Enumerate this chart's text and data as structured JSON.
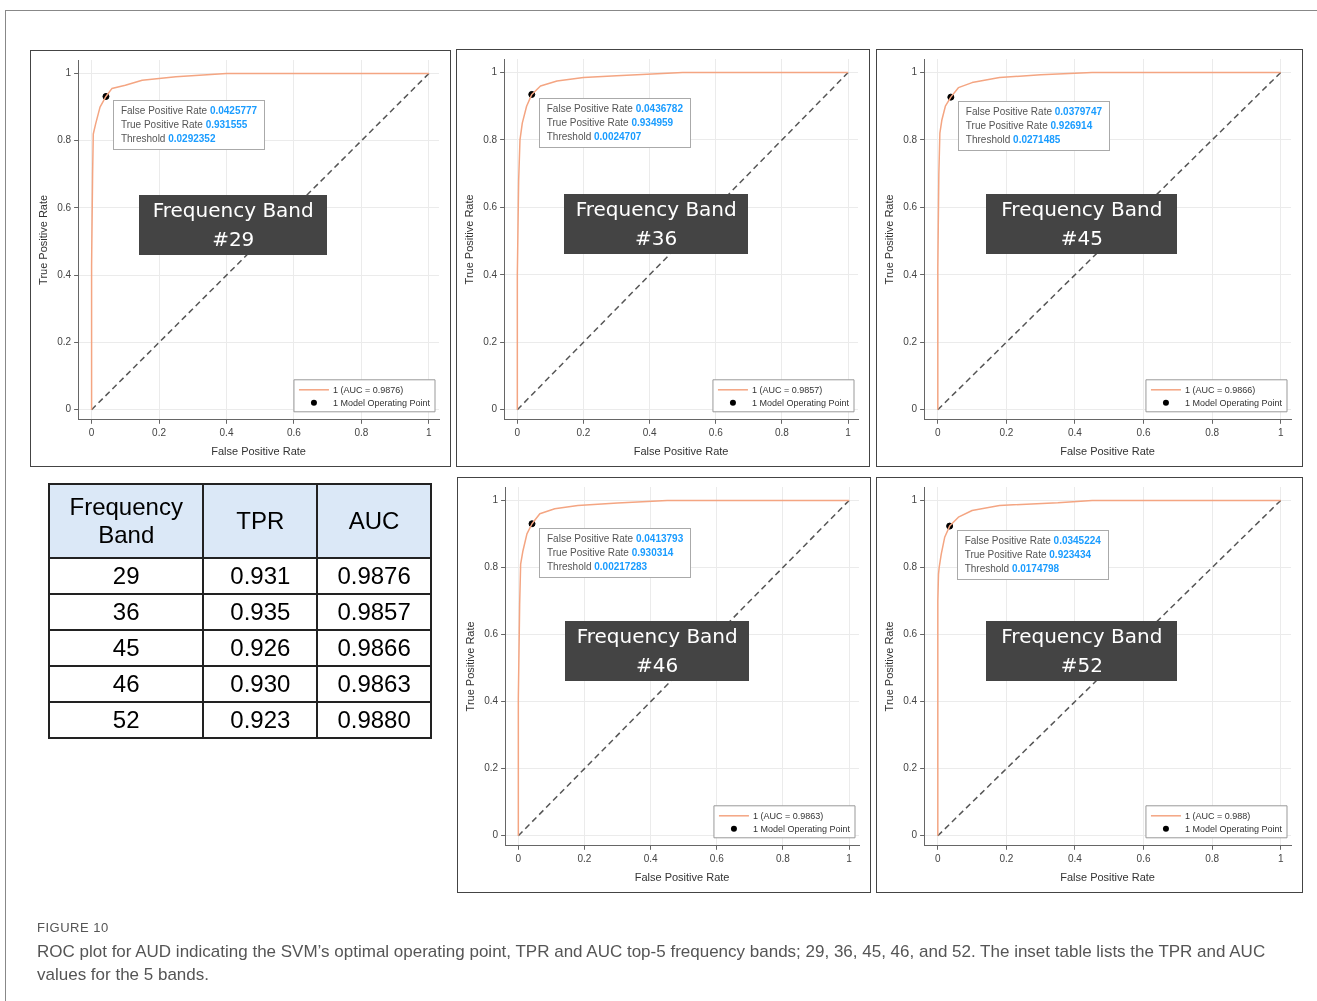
{
  "chart_data": [
    {
      "type": "line",
      "title": "Frequency Band #29",
      "xlabel": "False Positive Rate",
      "ylabel": "True Positive Rate",
      "xlim": [
        -0.04,
        1.03
      ],
      "ylim": [
        -0.03,
        1.04
      ],
      "xticks": [
        0,
        0.2,
        0.4,
        0.6,
        0.8,
        1
      ],
      "yticks": [
        0,
        0.2,
        0.4,
        0.6,
        0.8,
        1
      ],
      "grid": true,
      "legend": "bottom right",
      "annotations": [
        {
          "text": "False Positive Rate 0.0425777",
          "x": 0.0425777,
          "y": 0.931555
        },
        {
          "text": "True Positive Rate 0.931555",
          "x": 0.0425777,
          "y": 0.931555
        },
        "Threshold 0.0292352"
      ],
      "series": [
        {
          "name": "1 (AUC = 0.9876)",
          "type": "line",
          "color": "#f4a582",
          "marker": "none",
          "x": [
            0,
            0,
            0.003,
            0.005,
            0.012,
            0.025,
            0.0425777,
            0.06,
            0.1,
            0.15,
            0.25,
            0.4,
            1
          ],
          "values": [
            0,
            0.43,
            0.7,
            0.82,
            0.85,
            0.9,
            0.931555,
            0.955,
            0.965,
            0.98,
            0.99,
            1,
            1
          ]
        },
        {
          "type": "line",
          "color": "#555555",
          "marker": "none",
          "line_style": "dashed",
          "x": [
            0,
            1
          ],
          "values": [
            0,
            1
          ]
        },
        {
          "name": "1 Model Operating Point",
          "type": "scatter",
          "color": "#000000",
          "marker": "circle",
          "x": [
            0.0425777
          ],
          "values": [
            0.931555
          ]
        }
      ]
    },
    {
      "type": "line",
      "title": "Frequency Band #36",
      "xlabel": "False Positive Rate",
      "ylabel": "True Positive Rate",
      "xlim": [
        -0.04,
        1.03
      ],
      "ylim": [
        -0.03,
        1.04
      ],
      "xticks": [
        0,
        0.2,
        0.4,
        0.6,
        0.8,
        1
      ],
      "yticks": [
        0,
        0.2,
        0.4,
        0.6,
        0.8,
        1
      ],
      "grid": true,
      "legend": "bottom right",
      "annotations": [
        {
          "text": "False Positive Rate 0.0436782",
          "x": 0.0436782,
          "y": 0.934959
        },
        {
          "text": "True Positive Rate 0.934959",
          "x": 0.0436782,
          "y": 0.934959
        },
        "Threshold 0.0024707"
      ],
      "series": [
        {
          "name": "1 (AUC = 0.9857)",
          "type": "line",
          "color": "#f4a582",
          "marker": "none",
          "x": [
            0,
            0,
            0.004,
            0.008,
            0.015,
            0.028,
            0.0436782,
            0.07,
            0.12,
            0.2,
            0.3,
            0.5,
            1
          ],
          "values": [
            0,
            0.4,
            0.68,
            0.8,
            0.85,
            0.9,
            0.934959,
            0.96,
            0.975,
            0.985,
            0.99,
            1,
            1
          ]
        },
        {
          "type": "line",
          "color": "#555555",
          "marker": "none",
          "line_style": "dashed",
          "x": [
            0,
            1
          ],
          "values": [
            0,
            1
          ]
        },
        {
          "name": "1 Model Operating Point",
          "type": "scatter",
          "color": "#000000",
          "marker": "circle",
          "x": [
            0.0436782
          ],
          "values": [
            0.934959
          ]
        }
      ]
    },
    {
      "type": "line",
      "title": "Frequency Band #45",
      "xlabel": "False Positive Rate",
      "ylabel": "True Positive Rate",
      "xlim": [
        -0.04,
        1.03
      ],
      "ylim": [
        -0.03,
        1.04
      ],
      "xticks": [
        0,
        0.2,
        0.4,
        0.6,
        0.8,
        1
      ],
      "yticks": [
        0,
        0.2,
        0.4,
        0.6,
        0.8,
        1
      ],
      "grid": true,
      "legend": "bottom right",
      "annotations": [
        {
          "text": "False Positive Rate 0.0379747",
          "x": 0.0379747,
          "y": 0.926914
        },
        {
          "text": "True Positive Rate 0.926914",
          "x": 0.0379747,
          "y": 0.926914
        },
        "Threshold 0.0271485"
      ],
      "series": [
        {
          "name": "1 (AUC = 0.9866)",
          "type": "line",
          "color": "#f4a582",
          "marker": "none",
          "x": [
            0,
            0,
            0.003,
            0.006,
            0.012,
            0.022,
            0.0379747,
            0.06,
            0.1,
            0.18,
            0.3,
            0.45,
            1
          ],
          "values": [
            0,
            0.42,
            0.7,
            0.82,
            0.86,
            0.9,
            0.926914,
            0.955,
            0.97,
            0.985,
            0.993,
            1,
            1
          ]
        },
        {
          "type": "line",
          "color": "#555555",
          "marker": "none",
          "line_style": "dashed",
          "x": [
            0,
            1
          ],
          "values": [
            0,
            1
          ]
        },
        {
          "name": "1 Model Operating Point",
          "type": "scatter",
          "color": "#000000",
          "marker": "circle",
          "x": [
            0.0379747
          ],
          "values": [
            0.926914
          ]
        }
      ]
    },
    {
      "type": "other",
      "categories": [
        "Frequency Band",
        "TPR",
        "AUC"
      ],
      "y_categories": [
        "29",
        "36",
        "45",
        "46",
        "52"
      ],
      "cells": [
        [
          "0.931",
          "0.9876"
        ],
        [
          "0.935",
          "0.9857"
        ],
        [
          "0.926",
          "0.9866"
        ],
        [
          "0.930",
          "0.9863"
        ],
        [
          "0.923",
          "0.9880"
        ]
      ],
      "annotations": [
        "FIGURE 10",
        "ROC plot for AUD indicating the SVM’s optimal operating point, TPR and AUC top-5 frequency bands; 29, 36, 45, 46, and 52. The inset table lists the TPR and AUC values for the 5 bands."
      ]
    },
    {
      "type": "line",
      "title": "Frequency Band #46",
      "xlabel": "False Positive Rate",
      "ylabel": "True Positive Rate",
      "xlim": [
        -0.04,
        1.03
      ],
      "ylim": [
        -0.03,
        1.04
      ],
      "xticks": [
        0,
        0.2,
        0.4,
        0.6,
        0.8,
        1
      ],
      "yticks": [
        0,
        0.2,
        0.4,
        0.6,
        0.8,
        1
      ],
      "grid": true,
      "legend": "bottom right",
      "annotations": [
        {
          "text": "False Positive Rate 0.0413793",
          "x": 0.0413793,
          "y": 0.930314
        },
        {
          "text": "True Positive Rate 0.930314",
          "x": 0.0413793,
          "y": 0.930314
        },
        "Threshold 0.00217283"
      ],
      "series": [
        {
          "name": "1 (AUC = 0.9863)",
          "type": "line",
          "color": "#f4a582",
          "marker": "none",
          "x": [
            0,
            0,
            0.004,
            0.007,
            0.014,
            0.026,
            0.0413793,
            0.065,
            0.11,
            0.18,
            0.3,
            0.45,
            1
          ],
          "values": [
            0,
            0.41,
            0.69,
            0.81,
            0.85,
            0.9,
            0.930314,
            0.96,
            0.975,
            0.985,
            0.992,
            1,
            1
          ]
        },
        {
          "type": "line",
          "color": "#555555",
          "marker": "none",
          "line_style": "dashed",
          "x": [
            0,
            1
          ],
          "values": [
            0,
            1
          ]
        },
        {
          "name": "1 Model Operating Point",
          "type": "scatter",
          "color": "#000000",
          "marker": "circle",
          "x": [
            0.0413793
          ],
          "values": [
            0.930314
          ]
        }
      ]
    },
    {
      "type": "line",
      "title": "Frequency Band #52",
      "xlabel": "False Positive Rate",
      "ylabel": "True Positive Rate",
      "xlim": [
        -0.04,
        1.03
      ],
      "ylim": [
        -0.03,
        1.04
      ],
      "xticks": [
        0,
        0.2,
        0.4,
        0.6,
        0.8,
        1
      ],
      "yticks": [
        0,
        0.2,
        0.4,
        0.6,
        0.8,
        1
      ],
      "grid": true,
      "legend": "bottom right",
      "annotations": [
        {
          "text": "False Positive Rate 0.0345224",
          "x": 0.0345224,
          "y": 0.923434
        },
        {
          "text": "True Positive Rate 0.923434",
          "x": 0.0345224,
          "y": 0.923434
        },
        "Threshold 0.0174798"
      ],
      "series": [
        {
          "name": "1 (AUC = 0.988)",
          "type": "line",
          "color": "#f4a582",
          "marker": "none",
          "x": [
            0,
            0,
            0.002,
            0.004,
            0.01,
            0.02,
            0.0345224,
            0.06,
            0.1,
            0.18,
            0.35,
            0.45,
            1
          ],
          "values": [
            0,
            0.7,
            0.78,
            0.8,
            0.84,
            0.89,
            0.923434,
            0.95,
            0.97,
            0.985,
            0.993,
            1,
            1
          ]
        },
        {
          "type": "line",
          "color": "#555555",
          "marker": "none",
          "line_style": "dashed",
          "x": [
            0,
            1
          ],
          "values": [
            0,
            1
          ]
        },
        {
          "name": "1 Model Operating Point",
          "type": "scatter",
          "color": "#000000",
          "marker": "circle",
          "x": [
            0.0345224
          ],
          "values": [
            0.923434
          ]
        }
      ]
    }
  ]
}
